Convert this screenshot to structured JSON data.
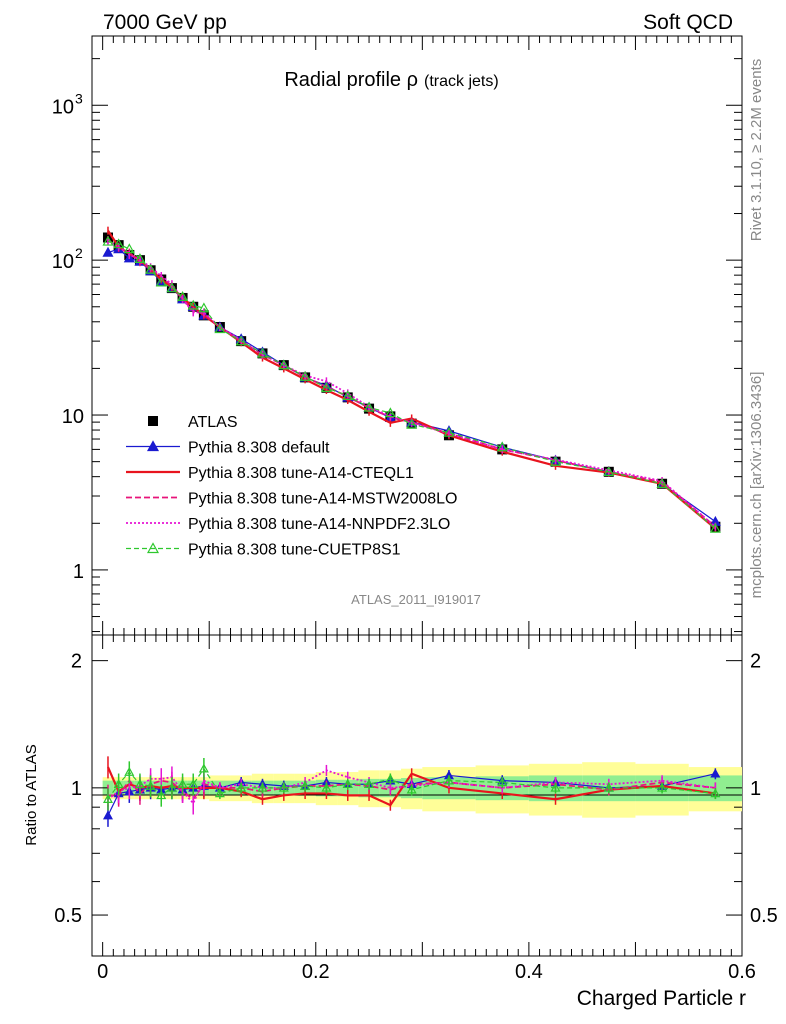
{
  "header": {
    "left": "7000 GeV pp",
    "right": "Soft QCD"
  },
  "side_labels": {
    "rivet": "Rivet 3.1.10, ≥ 2.2M events",
    "mcplots": "mcplots.cern.ch [arXiv:1306.3436]"
  },
  "colors": {
    "atlas": "#000000",
    "default": "#1a1ad0",
    "cteql1": "#e8141e",
    "mstw": "#e8147a",
    "nnpdf": "#e614d4",
    "cuetp8s1": "#2ec82e",
    "band_inner": "#90ee90",
    "band_outer": "#fffe98"
  },
  "chart_data": [
    {
      "type": "line",
      "title_main": "Radial profile ρ",
      "title_sub": "(track jets)",
      "watermark": "ATLAS_2011_I919017",
      "y_scale": "log",
      "ylim": [
        0.38,
        2800
      ],
      "xlim": [
        -0.01,
        0.6
      ],
      "y_ticks": [
        {
          "value": 1,
          "label": "1"
        },
        {
          "value": 10,
          "label": "10"
        },
        {
          "value": 100,
          "label": "10",
          "sup": "2"
        },
        {
          "value": 1000,
          "label": "10",
          "sup": "3"
        }
      ],
      "legend_position": "bottom-left",
      "x": [
        0.005,
        0.015,
        0.025,
        0.035,
        0.045,
        0.055,
        0.065,
        0.075,
        0.085,
        0.095,
        0.11,
        0.13,
        0.15,
        0.17,
        0.19,
        0.21,
        0.23,
        0.25,
        0.27,
        0.29,
        0.325,
        0.375,
        0.425,
        0.475,
        0.525,
        0.575
      ],
      "series": [
        {
          "name": "ATLAS",
          "key": "atlas",
          "style": "square",
          "values": [
            140,
            125,
            108,
            100,
            86,
            75,
            66,
            57,
            50,
            44,
            37,
            30,
            25,
            21,
            17.5,
            15,
            13,
            11,
            9.8,
            8.8,
            7.4,
            6.0,
            5.0,
            4.3,
            3.6,
            1.9
          ]
        },
        {
          "name": "Pythia 8.308 default",
          "key": "default",
          "style": "solid-triangle",
          "values": [
            112,
            118,
            103,
            98,
            85,
            73,
            66,
            56,
            50,
            44,
            37,
            31,
            25.5,
            21,
            17.5,
            15.5,
            13,
            11.2,
            9.6,
            9.0,
            7.9,
            6.2,
            5.1,
            4.3,
            3.6,
            2.05
          ]
        },
        {
          "name": "Pythia 8.308 tune-A14-CTEQL1",
          "key": "cteql1",
          "style": "solid",
          "values": [
            155,
            122,
            110,
            100,
            87,
            75,
            67,
            57,
            50,
            44,
            37,
            29.5,
            23.5,
            20,
            17,
            14.5,
            12.5,
            10.5,
            8.9,
            9.5,
            7.4,
            5.8,
            4.7,
            4.25,
            3.6,
            1.85
          ]
        },
        {
          "name": "Pythia 8.308 tune-A14-MSTW2008LO",
          "key": "mstw",
          "style": "dashed",
          "values": [
            135,
            120,
            112,
            97,
            88,
            78,
            68,
            56,
            47,
            45,
            37,
            30,
            24.5,
            21,
            17.6,
            15.2,
            13.2,
            11.1,
            9.7,
            9.0,
            7.6,
            6.0,
            5.1,
            4.3,
            3.7,
            1.9
          ]
        },
        {
          "name": "Pythia 8.308 tune-A14-NNPDF2.3LO",
          "key": "nnpdf",
          "style": "dotted",
          "values": [
            132,
            122,
            108,
            101,
            90,
            79,
            70,
            56,
            46,
            46,
            37,
            30.5,
            24.5,
            21,
            18,
            16.5,
            13.8,
            11.3,
            9.8,
            8.9,
            7.6,
            6.0,
            5.15,
            4.4,
            3.75,
            1.9
          ]
        },
        {
          "name": "Pythia 8.308 tune-CUETP8S1",
          "key": "cuetp8s1",
          "style": "dashed-open-triangle",
          "values": [
            132,
            127,
            118,
            102,
            87,
            72,
            66,
            58,
            51,
            49,
            36,
            30,
            25,
            21,
            17.7,
            15,
            13.3,
            11.2,
            10.3,
            8.7,
            7.7,
            6.2,
            5.0,
            4.3,
            3.6,
            1.85
          ]
        }
      ]
    },
    {
      "type": "line",
      "ylabel": "Ratio to ATLAS",
      "xlabel": "Charged Particle r",
      "ylim": [
        0.4,
        2.3
      ],
      "xlim": [
        -0.01,
        0.6
      ],
      "y_scale": "log",
      "y_ticks": [
        {
          "value": 0.5,
          "label": "0.5"
        },
        {
          "value": 1,
          "label": "1"
        },
        {
          "value": 2,
          "label": "2"
        }
      ],
      "x_ticks": [
        {
          "value": 0,
          "label": "0"
        },
        {
          "value": 0.2,
          "label": "0.2"
        },
        {
          "value": 0.4,
          "label": "0.4"
        },
        {
          "value": 0.6,
          "label": "0.6"
        }
      ],
      "band_edges": [
        0,
        0.01,
        0.02,
        0.03,
        0.04,
        0.05,
        0.06,
        0.07,
        0.08,
        0.09,
        0.1,
        0.12,
        0.14,
        0.16,
        0.18,
        0.2,
        0.22,
        0.24,
        0.26,
        0.28,
        0.3,
        0.35,
        0.4,
        0.45,
        0.5,
        0.55,
        0.6
      ],
      "band_inner": [
        0.04,
        0.04,
        0.04,
        0.04,
        0.04,
        0.04,
        0.04,
        0.04,
        0.04,
        0.04,
        0.04,
        0.04,
        0.04,
        0.04,
        0.04,
        0.045,
        0.045,
        0.05,
        0.05,
        0.055,
        0.06,
        0.065,
        0.07,
        0.07,
        0.07,
        0.07
      ],
      "band_outer": [
        0.06,
        0.06,
        0.06,
        0.06,
        0.06,
        0.06,
        0.06,
        0.06,
        0.06,
        0.06,
        0.07,
        0.07,
        0.08,
        0.08,
        0.08,
        0.09,
        0.09,
        0.1,
        0.1,
        0.11,
        0.12,
        0.13,
        0.14,
        0.15,
        0.14,
        0.12
      ],
      "series": [
        {
          "key": "default",
          "values": [
            0.86,
            0.97,
            0.98,
            0.99,
            1.0,
            0.99,
            1.0,
            0.99,
            1.0,
            1.01,
            1.0,
            1.03,
            1.02,
            1.01,
            1.01,
            1.03,
            1.02,
            1.02,
            1.04,
            1.02,
            1.07,
            1.04,
            1.03,
            1.0,
            1.01,
            1.08
          ]
        },
        {
          "key": "cteql1",
          "values": [
            1.12,
            0.98,
            1.02,
            1.0,
            1.01,
            1.0,
            1.01,
            1.0,
            1.0,
            1.0,
            1.0,
            0.98,
            0.94,
            0.96,
            0.97,
            0.97,
            0.96,
            0.96,
            0.91,
            1.08,
            1.0,
            0.97,
            0.94,
            0.99,
            1.01,
            0.97
          ]
        },
        {
          "key": "mstw",
          "values": [
            0.96,
            0.96,
            1.04,
            0.97,
            1.02,
            1.04,
            1.03,
            0.98,
            0.94,
            1.02,
            1.0,
            1.0,
            0.98,
            1.0,
            1.01,
            1.01,
            1.02,
            1.01,
            0.99,
            1.02,
            1.03,
            1.0,
            1.02,
            0.99,
            1.03,
            1.0
          ]
        },
        {
          "key": "nnpdf",
          "values": [
            0.94,
            0.98,
            1.0,
            1.01,
            1.05,
            1.05,
            1.06,
            0.98,
            0.92,
            1.04,
            1.0,
            1.02,
            1.0,
            1.0,
            1.03,
            1.1,
            1.06,
            1.03,
            1.0,
            1.01,
            1.03,
            1.0,
            1.03,
            1.02,
            1.04,
            1.0
          ]
        },
        {
          "key": "cuetp8s1",
          "values": [
            0.94,
            1.02,
            1.09,
            1.02,
            1.01,
            0.96,
            1.0,
            1.02,
            1.02,
            1.11,
            0.97,
            1.0,
            1.0,
            1.0,
            1.01,
            1.0,
            1.02,
            1.02,
            1.05,
            0.99,
            1.04,
            1.03,
            1.0,
            1.0,
            1.0,
            0.97
          ]
        }
      ]
    }
  ]
}
